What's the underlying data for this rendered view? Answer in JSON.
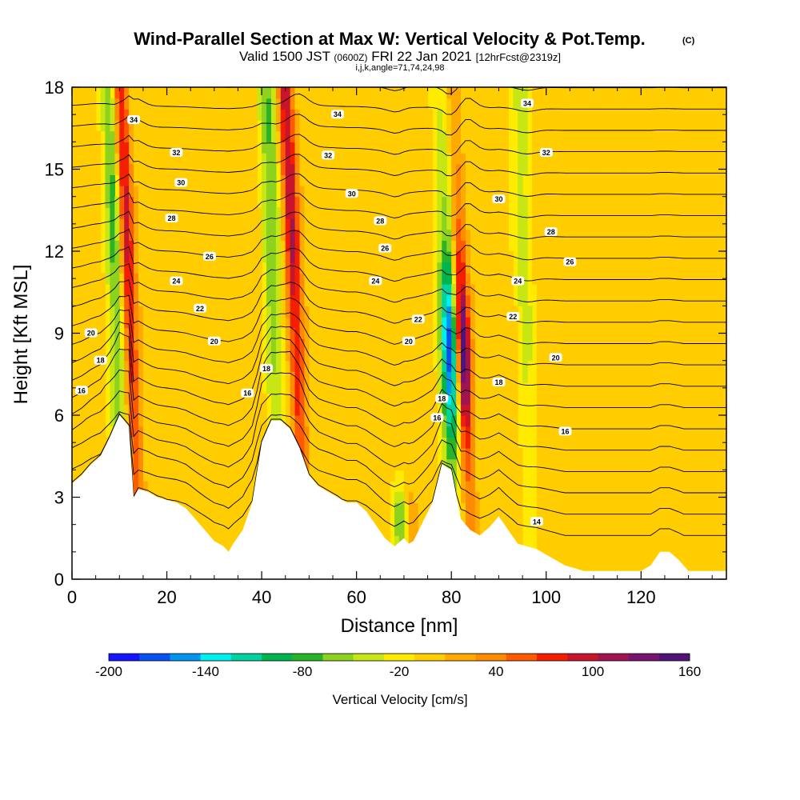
{
  "title": {
    "main": "Wind-Parallel Section at Max W: Vertical Velocity & Pot.Temp.",
    "copyright": "(C)",
    "valid_prefix": "Valid 1500 JST",
    "valid_utc": "(0600Z)",
    "valid_date": "FRI 22 Jan 2021",
    "forecast": "[12hrFcst@2319z]",
    "indices": "i,j,k,angle=71,74,24,98"
  },
  "chart_data": {
    "type": "heatmap",
    "xlabel": "Distance [nm]",
    "ylabel": "Height [Kft MSL]",
    "xlim": [
      0,
      138
    ],
    "ylim": [
      0,
      18
    ],
    "x_ticks": [
      0,
      20,
      40,
      60,
      80,
      100,
      120
    ],
    "x_tick_labels": [
      "0",
      "20",
      "40",
      "60",
      "80",
      "100",
      "120"
    ],
    "y_ticks": [
      0,
      3,
      6,
      9,
      12,
      15,
      18
    ],
    "y_tick_labels": [
      "0",
      "3",
      "6",
      "9",
      "12",
      "15",
      "18"
    ],
    "colorbar": {
      "label": "Vertical Velocity [cm/s]",
      "levels": [
        -200,
        -180,
        -160,
        -140,
        -120,
        -100,
        -80,
        -60,
        -40,
        -20,
        0,
        20,
        40,
        60,
        80,
        100,
        120,
        140,
        160
      ],
      "tick_values": [
        -200,
        -140,
        -80,
        -20,
        40,
        100,
        160
      ],
      "tick_labels": [
        "-200",
        "-140",
        "-80",
        "-20",
        "40",
        "100",
        "160"
      ],
      "colors": [
        "#1414ff",
        "#0a50f0",
        "#0096f0",
        "#00f0f0",
        "#00d2a0",
        "#00b450",
        "#28b428",
        "#8cd21e",
        "#c8e614",
        "#ffeb00",
        "#ffcd00",
        "#ffaa00",
        "#ff8c00",
        "#ff5a00",
        "#f51e00",
        "#c8142d",
        "#a01450",
        "#78146e",
        "#501478"
      ]
    },
    "terrain_profile": {
      "x": [
        0,
        2,
        4,
        6,
        8,
        10,
        11,
        12,
        13,
        14,
        16,
        18,
        20,
        22,
        24,
        26,
        28,
        30,
        32,
        33,
        34,
        36,
        38,
        40,
        42,
        44,
        46,
        48,
        50,
        52,
        54,
        56,
        58,
        60,
        62,
        64,
        66,
        68,
        70,
        71,
        72,
        74,
        76,
        78,
        80,
        82,
        84,
        86,
        88,
        90,
        92,
        94,
        96,
        98,
        100,
        102,
        104,
        106,
        108,
        110,
        115,
        120,
        122,
        124,
        126,
        128,
        130,
        132,
        138
      ],
      "height_kft": [
        3.5,
        3.8,
        4.2,
        4.5,
        5.2,
        6.0,
        5.8,
        5.6,
        3.0,
        3.3,
        3.2,
        3.0,
        2.9,
        2.8,
        2.6,
        2.2,
        1.8,
        1.4,
        1.2,
        1.0,
        1.3,
        1.8,
        2.8,
        5.0,
        5.8,
        5.8,
        5.5,
        4.8,
        3.8,
        3.4,
        3.2,
        3.0,
        2.8,
        2.8,
        2.5,
        2.0,
        1.5,
        1.2,
        1.5,
        1.3,
        1.4,
        2.1,
        2.8,
        4.2,
        4.0,
        2.2,
        1.8,
        1.6,
        1.9,
        2.3,
        1.8,
        1.3,
        1.2,
        1.1,
        0.9,
        0.7,
        0.5,
        0.4,
        0.3,
        0.3,
        0.3,
        0.3,
        0.5,
        1.0,
        1.0,
        0.7,
        0.3,
        0.3,
        0.3
      ]
    },
    "vertical_velocity_features": [
      {
        "x_center_nm": 13,
        "peak_cm_s": 110,
        "kind": "updraft"
      },
      {
        "x_center_nm": 10,
        "peak_cm_s": -80,
        "kind": "downdraft"
      },
      {
        "x_center_nm": 48,
        "peak_cm_s": 110,
        "kind": "updraft"
      },
      {
        "x_center_nm": 43,
        "peak_cm_s": -70,
        "kind": "downdraft"
      },
      {
        "x_center_nm": 83,
        "peak_cm_s": 160,
        "kind": "updraft"
      },
      {
        "x_center_nm": 80,
        "peak_cm_s": -170,
        "kind": "downdraft"
      },
      {
        "x_center_nm": 96,
        "peak_cm_s": -40,
        "kind": "downdraft"
      },
      {
        "x_center_nm": 70,
        "peak_cm_s": 60,
        "kind": "updraft"
      },
      {
        "x_center_nm": 69,
        "peak_cm_s": -90,
        "kind": "downdraft"
      }
    ],
    "pot_temp_contour_labels": [
      {
        "text": "34",
        "x": 13,
        "y": 16.8
      },
      {
        "text": "32",
        "x": 22,
        "y": 15.6
      },
      {
        "text": "30",
        "x": 23,
        "y": 14.5
      },
      {
        "text": "28",
        "x": 21,
        "y": 13.2
      },
      {
        "text": "26",
        "x": 29,
        "y": 11.8
      },
      {
        "text": "24",
        "x": 22,
        "y": 10.9
      },
      {
        "text": "22",
        "x": 27,
        "y": 9.9
      },
      {
        "text": "20",
        "x": 30,
        "y": 8.7
      },
      {
        "text": "18",
        "x": 41,
        "y": 7.7
      },
      {
        "text": "16",
        "x": 37,
        "y": 6.8
      },
      {
        "text": "20",
        "x": 4,
        "y": 9.0
      },
      {
        "text": "18",
        "x": 6,
        "y": 8.0
      },
      {
        "text": "16",
        "x": 2,
        "y": 6.9
      },
      {
        "text": "34",
        "x": 56,
        "y": 17.0
      },
      {
        "text": "32",
        "x": 54,
        "y": 15.5
      },
      {
        "text": "30",
        "x": 59,
        "y": 14.1
      },
      {
        "text": "28",
        "x": 65,
        "y": 13.1
      },
      {
        "text": "26",
        "x": 66,
        "y": 12.1
      },
      {
        "text": "24",
        "x": 64,
        "y": 10.9
      },
      {
        "text": "22",
        "x": 73,
        "y": 9.5
      },
      {
        "text": "20",
        "x": 71,
        "y": 8.7
      },
      {
        "text": "18",
        "x": 78,
        "y": 6.6
      },
      {
        "text": "16",
        "x": 77,
        "y": 5.9
      },
      {
        "text": "34",
        "x": 96,
        "y": 17.4
      },
      {
        "text": "32",
        "x": 100,
        "y": 15.6
      },
      {
        "text": "30",
        "x": 90,
        "y": 13.9
      },
      {
        "text": "28",
        "x": 101,
        "y": 12.7
      },
      {
        "text": "26",
        "x": 105,
        "y": 11.6
      },
      {
        "text": "24",
        "x": 94,
        "y": 10.9
      },
      {
        "text": "22",
        "x": 93,
        "y": 9.6
      },
      {
        "text": "20",
        "x": 102,
        "y": 8.1
      },
      {
        "text": "18",
        "x": 90,
        "y": 7.2
      },
      {
        "text": "16",
        "x": 104,
        "y": 5.4
      },
      {
        "text": "14",
        "x": 98,
        "y": 2.1
      }
    ]
  }
}
